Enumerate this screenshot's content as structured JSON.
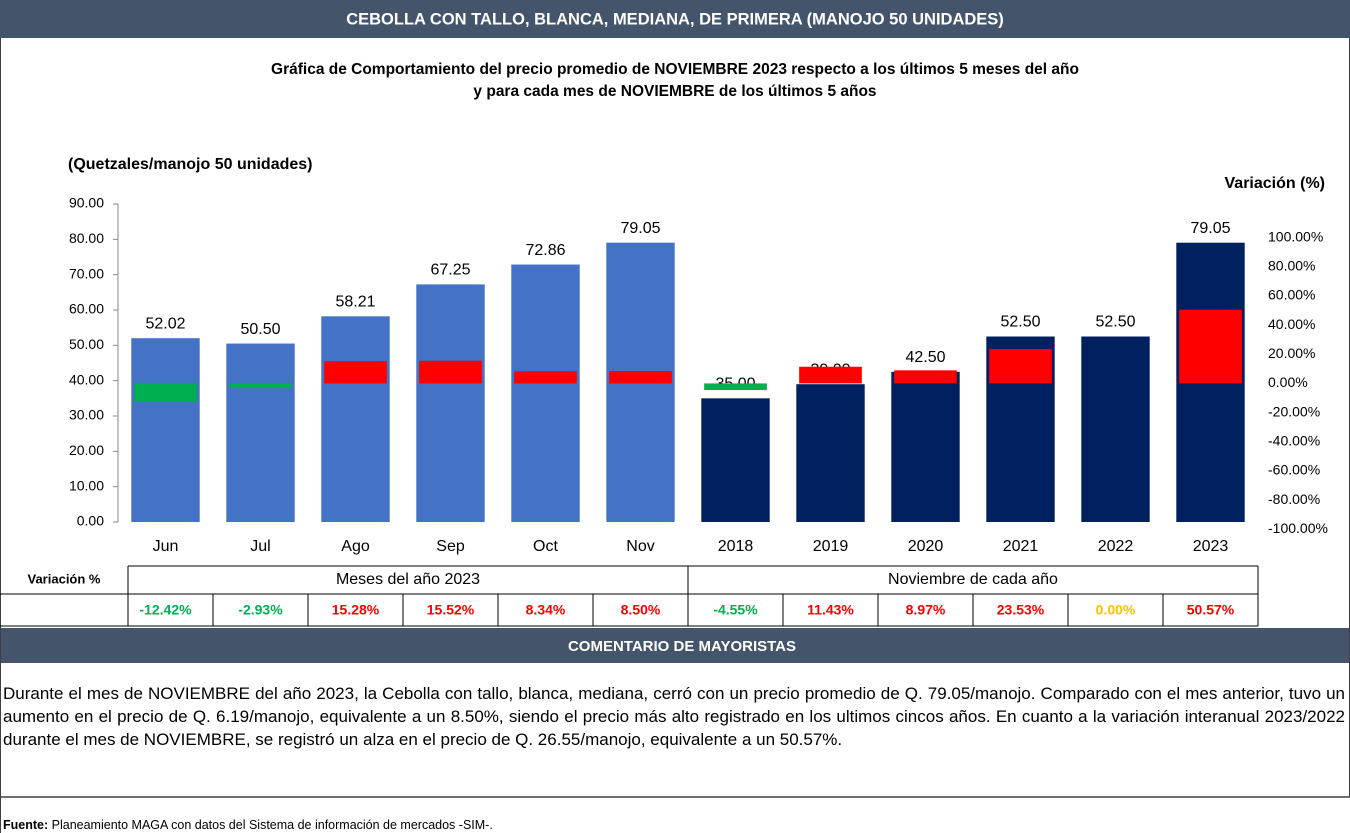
{
  "header": {
    "title": "CEBOLLA CON TALLO, BLANCA, MEDIANA, DE PRIMERA (MANOJO 50 UNIDADES)"
  },
  "chart_data": {
    "type": "bar",
    "title": [
      "Gráfica de Comportamiento del precio promedio de NOVIEMBRE 2023 respecto a los últimos 5 meses del año",
      "y para cada mes de NOVIEMBRE de los últimos 5 años"
    ],
    "y_label": "(Quetzales/manojo 50 unidades)",
    "y2_label": "Variación (%)",
    "categories": [
      "Jun",
      "Jul",
      "Ago",
      "Sep",
      "Oct",
      "Nov",
      "2018",
      "2019",
      "2020",
      "2021",
      "2022",
      "2023"
    ],
    "series": [
      {
        "name": "Meses del año 2023",
        "color": "#4472c4",
        "values": [
          52.02,
          50.5,
          58.21,
          67.25,
          72.86,
          79.05,
          null,
          null,
          null,
          null,
          null,
          null
        ],
        "value_labels": [
          "52.02",
          "50.50",
          "58.21",
          "67.25",
          "72.86",
          "79.05",
          null,
          null,
          null,
          null,
          null,
          null
        ]
      },
      {
        "name": "Noviembre de cada año",
        "color": "#002060",
        "values": [
          null,
          null,
          null,
          null,
          null,
          null,
          35,
          39,
          42.5,
          52.5,
          52.5,
          79.05
        ],
        "value_labels": [
          null,
          null,
          null,
          null,
          null,
          null,
          "35.00",
          "39.00",
          "42.50",
          "52.50",
          "52.50",
          "79.05"
        ]
      },
      {
        "name": "Variación %",
        "axis": "y2",
        "values": [
          -12.42,
          -2.93,
          15.28,
          15.52,
          8.34,
          8.5,
          -4.55,
          11.43,
          8.97,
          23.53,
          0,
          50.57
        ],
        "value_labels": [
          "-12.42%",
          "-2.93%",
          "15.28%",
          "15.52%",
          "8.34%",
          "8.50%",
          "-4.55%",
          "11.43%",
          "8.97%",
          "23.53%",
          "0.00%",
          "50.57%"
        ],
        "colors": [
          "#00b050",
          "#00b050",
          "#ff0000",
          "#ff0000",
          "#ff0000",
          "#ff0000",
          "#00b050",
          "#ff0000",
          "#ff0000",
          "#ff0000",
          "#ffc000",
          "#ff0000"
        ]
      }
    ],
    "ylim": [
      0,
      90
    ],
    "yticks": [
      {
        "value": 0,
        "label": "0.00"
      },
      {
        "value": 10,
        "label": "10.00"
      },
      {
        "value": 20,
        "label": "20.00"
      },
      {
        "value": 30,
        "label": "30.00"
      },
      {
        "value": 40,
        "label": "40.00"
      },
      {
        "value": 50,
        "label": "50.00"
      },
      {
        "value": 60,
        "label": "60.00"
      },
      {
        "value": 70,
        "label": "70.00"
      },
      {
        "value": 80,
        "label": "80.00"
      },
      {
        "value": 90,
        "label": "90.00"
      }
    ],
    "y2lim": [
      -95,
      123
    ],
    "y2ticks": [
      {
        "value": -100,
        "label": "-100.00%"
      },
      {
        "value": -80,
        "label": "-80.00%"
      },
      {
        "value": -60,
        "label": "-60.00%"
      },
      {
        "value": -40,
        "label": "-40.00%"
      },
      {
        "value": -20,
        "label": "-20.00%"
      },
      {
        "value": 0,
        "label": "0.00%"
      },
      {
        "value": 20,
        "label": "20.00%"
      },
      {
        "value": 40,
        "label": "40.00%"
      },
      {
        "value": 60,
        "label": "60.00%"
      },
      {
        "value": 80,
        "label": "80.00%"
      },
      {
        "value": 100,
        "label": "100.00%"
      }
    ],
    "grid": false
  },
  "comment": {
    "title": "COMENTARIO DE MAYORISTAS",
    "text": "Durante el mes de NOVIEMBRE del año 2023, la Cebolla con tallo, blanca, mediana, cerró con un precio promedio de Q. 79.05/manojo. Comparado con el mes anterior, tuvo un aumento en el precio de Q. 6.19/manojo, equivalente a un 8.50%, siendo el precio más alto registrado en los ultimos cincos años. En cuanto a la variación interanual 2023/2022 durante el mes de NOVIEMBRE, se registró un alza en el precio de Q. 26.55/manojo, equivalente a un 50.57%."
  },
  "source": {
    "label": "Fuente:",
    "text": "Planeamiento MAGA con datos del Sistema de información de mercados -SIM-."
  }
}
